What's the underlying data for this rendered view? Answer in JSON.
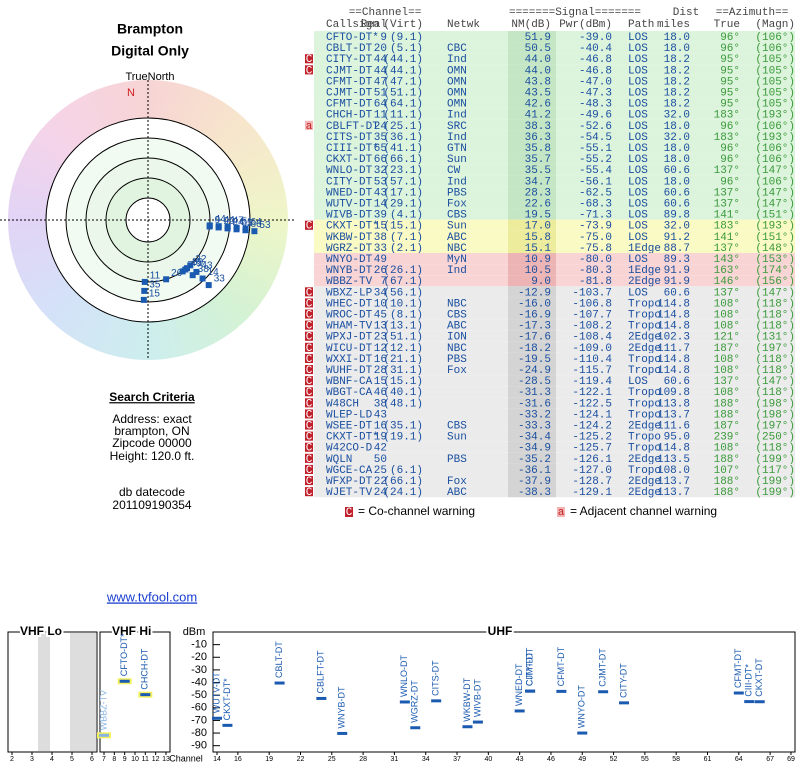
{
  "location": {
    "title": "Brampton",
    "subtitle": "Digital Only",
    "compass_label": "TrueNorth",
    "north": "N"
  },
  "search_criteria": {
    "heading": "Search Criteria",
    "lines": [
      "Address: exact",
      "brampton, ON",
      "Zipcode 00000",
      "Height: 120.0 ft."
    ]
  },
  "db_datecode": {
    "label": "db datecode",
    "value": "201109190354"
  },
  "link": "www.tvfool.com",
  "table": {
    "group_headers": [
      "==Channel==",
      "=======Signal=======",
      "Dist",
      "==Azimuth=="
    ],
    "headers": [
      "Callsign",
      "Real",
      "(Virt)",
      "Netwk",
      "NM(dB)",
      "Pwr(dBm)",
      "Path",
      "miles",
      "True",
      "(Magn)"
    ],
    "rows": [
      [
        "CFTO-DT*",
        "9",
        "(9.1)",
        null,
        "51.9",
        "-39.0",
        "LOS",
        "18.0",
        "96°",
        "(106°)",
        null
      ],
      [
        "CBLT-DT",
        "20",
        "(5.1)",
        "CBC",
        "50.5",
        "-40.4",
        "LOS",
        "18.0",
        "96°",
        "(106°)",
        null
      ],
      [
        "CITY-DT",
        "44",
        "(44.1)",
        "Ind",
        "44.0",
        "-46.8",
        "LOS",
        "18.2",
        "95°",
        "(105°)",
        "C"
      ],
      [
        "CJMT-DT",
        "44",
        "(44.1)",
        "OMN",
        "44.0",
        "-46.8",
        "LOS",
        "18.2",
        "95°",
        "(105°)",
        "C"
      ],
      [
        "CFMT-DT",
        "47",
        "(47.1)",
        "OMN",
        "43.8",
        "-47.0",
        "LOS",
        "18.2",
        "95°",
        "(105°)",
        null
      ],
      [
        "CJMT-DT",
        "51",
        "(51.1)",
        "OMN",
        "43.5",
        "-47.3",
        "LOS",
        "18.2",
        "95°",
        "(105°)",
        null
      ],
      [
        "CFMT-DT",
        "64",
        "(64.1)",
        "OMN",
        "42.6",
        "-48.3",
        "LOS",
        "18.2",
        "95°",
        "(105°)",
        null
      ],
      [
        "CHCH-DT",
        "11",
        "(11.1)",
        "Ind",
        "41.2",
        "-49.6",
        "LOS",
        "32.0",
        "183°",
        "(193°)",
        null
      ],
      [
        "CBLFT-DT",
        "24",
        "(25.1)",
        "SRC",
        "38.3",
        "-52.6",
        "LOS",
        "18.0",
        "96°",
        "(106°)",
        "a"
      ],
      [
        "CITS-DT",
        "35",
        "(36.1)",
        "Ind",
        "36.3",
        "-54.5",
        "LOS",
        "32.0",
        "183°",
        "(193°)",
        null
      ],
      [
        "CIII-DT*",
        "65",
        "(41.1)",
        "GTN",
        "35.8",
        "-55.1",
        "LOS",
        "18.0",
        "96°",
        "(106°)",
        null
      ],
      [
        "CKXT-DT",
        "66",
        "(66.1)",
        "Sun",
        "35.7",
        "-55.2",
        "LOS",
        "18.0",
        "96°",
        "(106°)",
        null
      ],
      [
        "WNLO-DT",
        "32",
        "(23.1)",
        "CW",
        "35.5",
        "-55.4",
        "LOS",
        "60.6",
        "137°",
        "(147°)",
        null
      ],
      [
        "CITY-DT",
        "53",
        "(57.1)",
        "Ind",
        "34.7",
        "-56.1",
        "LOS",
        "18.0",
        "96°",
        "(106°)",
        null
      ],
      [
        "WNED-DT",
        "43",
        "(17.1)",
        "PBS",
        "28.3",
        "-62.5",
        "LOS",
        "60.6",
        "137°",
        "(147°)",
        null
      ],
      [
        "WUTV-DT",
        "14",
        "(29.1)",
        "Fox",
        "22.6",
        "-68.3",
        "LOS",
        "60.6",
        "137°",
        "(147°)",
        null
      ],
      [
        "WIVB-DT",
        "39",
        "(4.1)",
        "CBS",
        "19.5",
        "-71.3",
        "LOS",
        "89.8",
        "141°",
        "(151°)",
        null
      ],
      [
        "CKXT-DT*",
        "15",
        "(15.1)",
        "Sun",
        "17.0",
        "-73.9",
        "LOS",
        "32.0",
        "183°",
        "(193°)",
        "C"
      ],
      [
        "WKBW-DT",
        "38",
        "(7.1)",
        "ABC",
        "15.8",
        "-75.0",
        "LOS",
        "91.2",
        "141°",
        "(151°)",
        null
      ],
      [
        "WGRZ-DT",
        "33",
        "(2.1)",
        "NBC",
        "15.1",
        "-75.8",
        "1Edge",
        "88.7",
        "137°",
        "(148°)",
        null
      ],
      [
        "WNYO-DT",
        "49",
        null,
        "MyN",
        "10.9",
        "-80.0",
        "LOS",
        "89.3",
        "143°",
        "(153°)",
        null
      ],
      [
        "WNYB-DT",
        "26",
        "(26.1)",
        "Ind",
        "10.5",
        "-80.3",
        "1Edge",
        "91.9",
        "163°",
        "(174°)",
        null
      ],
      [
        "WBBZ-TV",
        "7",
        "(67.1)",
        null,
        "9.0",
        "-81.8",
        "2Edge",
        "91.9",
        "146°",
        "(156°)",
        null
      ],
      [
        "WBXZ-LP",
        "34",
        "(56.1)",
        null,
        "-12.9",
        "-103.7",
        "LOS",
        "60.6",
        "137°",
        "(147°)",
        "C"
      ],
      [
        "WHEC-DT",
        "10",
        "(10.1)",
        "NBC",
        "-16.0",
        "-106.8",
        "Tropo",
        "114.8",
        "108°",
        "(118°)",
        "C"
      ],
      [
        "WROC-DT",
        "45",
        "(8.1)",
        "CBS",
        "-16.9",
        "-107.7",
        "Tropo",
        "114.8",
        "108°",
        "(118°)",
        "C"
      ],
      [
        "WHAM-TV",
        "13",
        "(13.1)",
        "ABC",
        "-17.3",
        "-108.2",
        "Tropo",
        "114.8",
        "108°",
        "(118°)",
        "C"
      ],
      [
        "WPXJ-DT",
        "23",
        "(51.1)",
        "ION",
        "-17.6",
        "-108.4",
        "2Edge",
        "102.3",
        "121°",
        "(131°)",
        "C"
      ],
      [
        "WICU-DT",
        "12",
        "(12.1)",
        "NBC",
        "-18.2",
        "-109.0",
        "2Edge",
        "111.7",
        "187°",
        "(197°)",
        "C"
      ],
      [
        "WXXI-DT",
        "16",
        "(21.1)",
        "PBS",
        "-19.5",
        "-110.4",
        "Tropo",
        "114.8",
        "108°",
        "(118°)",
        "C"
      ],
      [
        "WUHF-DT",
        "28",
        "(31.1)",
        "Fox",
        "-24.9",
        "-115.7",
        "Tropo",
        "114.8",
        "108°",
        "(118°)",
        "C"
      ],
      [
        "WBNF-CA",
        "15",
        "(15.1)",
        null,
        "-28.5",
        "-119.4",
        "LOS",
        "60.6",
        "137°",
        "(147°)",
        "C"
      ],
      [
        "WBGT-CA",
        "46",
        "(40.1)",
        null,
        "-31.3",
        "-122.1",
        "Tropo",
        "109.8",
        "108°",
        "(118°)",
        "C"
      ],
      [
        "W48CH",
        "38",
        "(48.1)",
        null,
        "-31.6",
        "-122.5",
        "Tropo",
        "113.8",
        "188°",
        "(198°)",
        "C"
      ],
      [
        "WLEP-LD",
        "43",
        null,
        null,
        "-33.2",
        "-124.1",
        "Tropo",
        "113.7",
        "188°",
        "(198°)",
        "C"
      ],
      [
        "WSEE-DT",
        "16",
        "(35.1)",
        "CBS",
        "-33.3",
        "-124.2",
        "2Edge",
        "111.6",
        "187°",
        "(197°)",
        "C"
      ],
      [
        "CKXT-DT*",
        "19",
        "(19.1)",
        "Sun",
        "-34.4",
        "-125.2",
        "Tropo",
        "95.0",
        "239°",
        "(250°)",
        "C"
      ],
      [
        "W42CO-D",
        "42",
        null,
        null,
        "-34.9",
        "-125.7",
        "Tropo",
        "114.8",
        "108°",
        "(118°)",
        "C"
      ],
      [
        "WQLN",
        "50",
        null,
        "PBS",
        "-35.2",
        "-126.1",
        "2Edge",
        "113.5",
        "188°",
        "(199°)",
        "C"
      ],
      [
        "WGCE-CA",
        "25",
        "(6.1)",
        null,
        "-36.1",
        "-127.0",
        "Tropo",
        "108.0",
        "107°",
        "(117°)",
        "C"
      ],
      [
        "WFXP-DT",
        "22",
        "(66.1)",
        "Fox",
        "-37.9",
        "-128.7",
        "2Edge",
        "113.7",
        "188°",
        "(199°)",
        "C"
      ],
      [
        "WJET-TV",
        "24",
        "(24.1)",
        "ABC",
        "-38.3",
        "-129.1",
        "2Edge",
        "113.7",
        "188°",
        "(199°)",
        "C"
      ]
    ]
  },
  "legend": [
    {
      "symbol": "C",
      "text": "= Co-channel warning"
    },
    {
      "symbol": "a",
      "text": "= Adjacent channel warning"
    }
  ],
  "spectrum": {
    "bands": [
      "VHF Lo",
      "VHF Hi",
      "UHF"
    ],
    "y_label": "dBm",
    "x_label": "Channel",
    "ylim": [
      -95,
      0
    ],
    "yticks": [
      -10,
      -20,
      -30,
      -40,
      -50,
      -60,
      -70,
      -80,
      -90
    ],
    "xticks_lo": [
      2,
      3,
      4,
      5,
      6
    ],
    "xticks_hi": [
      7,
      8,
      9,
      10,
      11,
      12,
      13
    ],
    "xticks_uhf": [
      14,
      16,
      19,
      22,
      25,
      28,
      31,
      34,
      37,
      40,
      43,
      46,
      49,
      52,
      55,
      58,
      61,
      64,
      67,
      69
    ]
  }
}
